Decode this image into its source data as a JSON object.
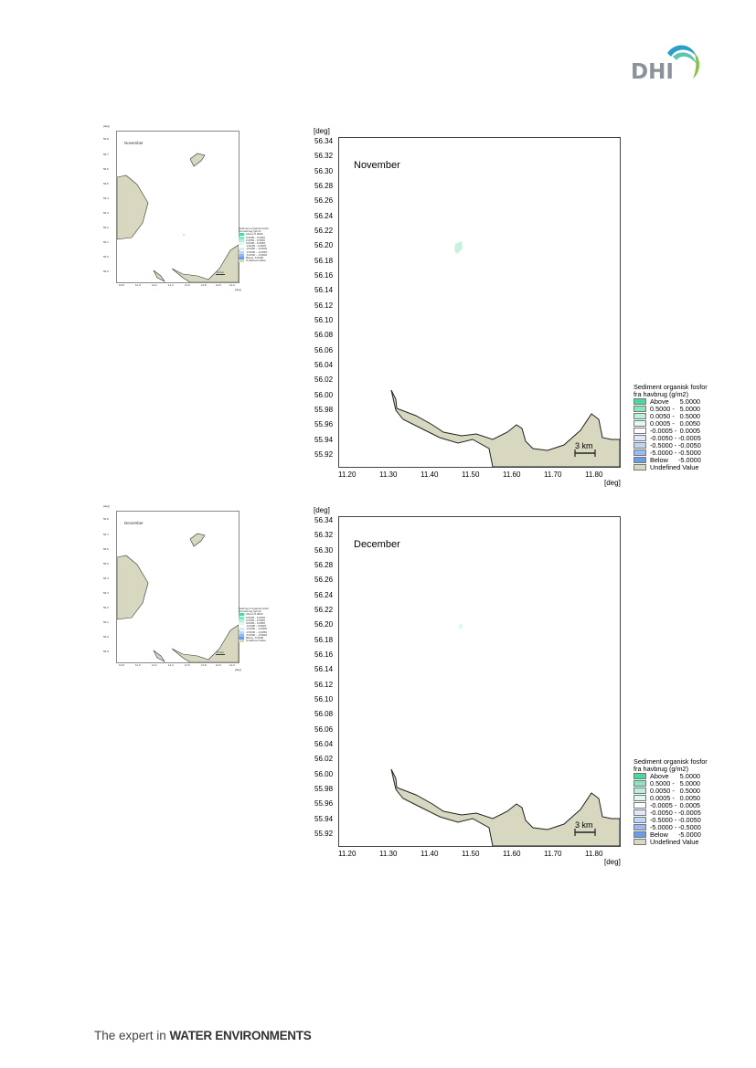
{
  "header": {
    "logo_text": "DHI",
    "logo_colors": [
      "#2b9fc9",
      "#5cc4b5",
      "#8bc34a"
    ]
  },
  "footer": {
    "prefix": "The expert in ",
    "emphasis": "WATER ENVIRONMENTS"
  },
  "maps": [
    {
      "month": "November",
      "yunit": "[deg]",
      "xunit": "[deg]",
      "yticks": [
        "56.34",
        "56.32",
        "56.30",
        "56.28",
        "56.26",
        "56.24",
        "56.22",
        "56.20",
        "56.18",
        "56.16",
        "56.14",
        "56.12",
        "56.10",
        "56.08",
        "56.06",
        "56.04",
        "56.02",
        "56.00",
        "55.98",
        "55.96",
        "55.94",
        "55.92"
      ],
      "xticks": [
        "11.20",
        "11.30",
        "11.40",
        "11.50",
        "11.60",
        "11.70",
        "11.80"
      ],
      "scale_bar": "3 km",
      "legend": {
        "title_line1": "Sediment organisk fosfor",
        "title_line2": "fra havbrug (g/m2)",
        "rows": [
          {
            "label": "Above",
            "value": "5.0000",
            "color": "#48d9a0"
          },
          {
            "label": "0.5000 -",
            "value": "5.0000",
            "color": "#88e6bf"
          },
          {
            "label": "0.0050 -",
            "value": "0.5000",
            "color": "#b8f0d8"
          },
          {
            "label": "0.0005 -",
            "value": "0.0050",
            "color": "#e0f8ee"
          },
          {
            "label": "-0.0005 -",
            "value": "0.0005",
            "color": "#ffffff"
          },
          {
            "label": "-0.0050 -",
            "value": "-0.0005",
            "color": "#e0e8f8"
          },
          {
            "label": "-0.5000 -",
            "value": "-0.0050",
            "color": "#c0d4f4"
          },
          {
            "label": "-5.0000 -",
            "value": "-0.5000",
            "color": "#98baee"
          },
          {
            "label": "Below",
            "value": "-5.0000",
            "color": "#6a9de6"
          },
          {
            "label": "Undefined Value",
            "value": "",
            "color": "#d8d8c0"
          }
        ]
      },
      "small_map": {
        "month": "November",
        "yunit": "[deg]",
        "yticks": [
          "56.8",
          "56.7",
          "56.6",
          "56.5",
          "56.4",
          "56.3",
          "56.2",
          "56.1",
          "56.0",
          "55.9"
        ],
        "xticks": [
          "10.8",
          "11.0",
          "11.2",
          "11.4",
          "11.6",
          "11.8",
          "12.0",
          "12.2"
        ],
        "xunit": "[deg]",
        "scale_bar": "10 km",
        "legend_title": "Sediment organisk fosfor",
        "legend_subtitle": "fra havbrug (g/m2)",
        "legend_rows": [
          "Above 5.0000",
          "0.5000 - 5.0000",
          "0.0050 - 0.5000",
          "0.0005 - 0.0050",
          "-0.0005 - 0.0005",
          "-0.0050 - -0.0005",
          "-0.5000 - -0.0050",
          "-5.0000 - -0.5000",
          "Below -5.0000",
          "Undefined Value"
        ]
      }
    },
    {
      "month": "December",
      "yunit": "[deg]",
      "xunit": "[deg]",
      "yticks": [
        "56.34",
        "56.32",
        "56.30",
        "56.28",
        "56.26",
        "56.24",
        "56.22",
        "56.20",
        "56.18",
        "56.16",
        "56.14",
        "56.12",
        "56.10",
        "56.08",
        "56.06",
        "56.04",
        "56.02",
        "56.00",
        "55.98",
        "55.96",
        "55.94",
        "55.92"
      ],
      "xticks": [
        "11.20",
        "11.30",
        "11.40",
        "11.50",
        "11.60",
        "11.70",
        "11.80"
      ],
      "scale_bar": "3 km",
      "legend": {
        "title_line1": "Sediment organisk fosfor",
        "title_line2": "fra havbrug (g/m2)",
        "rows": [
          {
            "label": "Above",
            "value": "5.0000",
            "color": "#48d9a0"
          },
          {
            "label": "0.5000 -",
            "value": "5.0000",
            "color": "#88e6bf"
          },
          {
            "label": "0.0050 -",
            "value": "0.5000",
            "color": "#b8f0d8"
          },
          {
            "label": "0.0005 -",
            "value": "0.0050",
            "color": "#e0f8ee"
          },
          {
            "label": "-0.0005 -",
            "value": "0.0005",
            "color": "#ffffff"
          },
          {
            "label": "-0.0050 -",
            "value": "-0.0005",
            "color": "#e0e8f8"
          },
          {
            "label": "-0.5000 -",
            "value": "-0.0050",
            "color": "#c0d4f4"
          },
          {
            "label": "-5.0000 -",
            "value": "-0.5000",
            "color": "#98baee"
          },
          {
            "label": "Below",
            "value": "-5.0000",
            "color": "#6a9de6"
          },
          {
            "label": "Undefined Value",
            "value": "",
            "color": "#d8d8c0"
          }
        ]
      },
      "small_map": {
        "month": "December",
        "yunit": "[deg]",
        "yticks": [
          "56.8",
          "56.7",
          "56.6",
          "56.5",
          "56.4",
          "56.3",
          "56.2",
          "56.1",
          "56.0",
          "55.9"
        ],
        "xticks": [
          "10.8",
          "11.0",
          "11.2",
          "11.4",
          "11.6",
          "11.8",
          "12.0",
          "12.2"
        ],
        "xunit": "[deg]",
        "scale_bar": "10 km",
        "legend_title": "Sediment organisk fosfor",
        "legend_subtitle": "fra havbrug (g/m2)",
        "legend_rows": [
          "Above 5.0000",
          "0.5000 - 5.0000",
          "0.0050 - 0.5000",
          "0.0005 - 0.0050",
          "-0.0005 - 0.0005",
          "-0.0050 - -0.0005",
          "-0.5000 - -0.0050",
          "-5.0000 - -0.5000",
          "Below -5.0000",
          "Undefined Value"
        ]
      }
    }
  ]
}
